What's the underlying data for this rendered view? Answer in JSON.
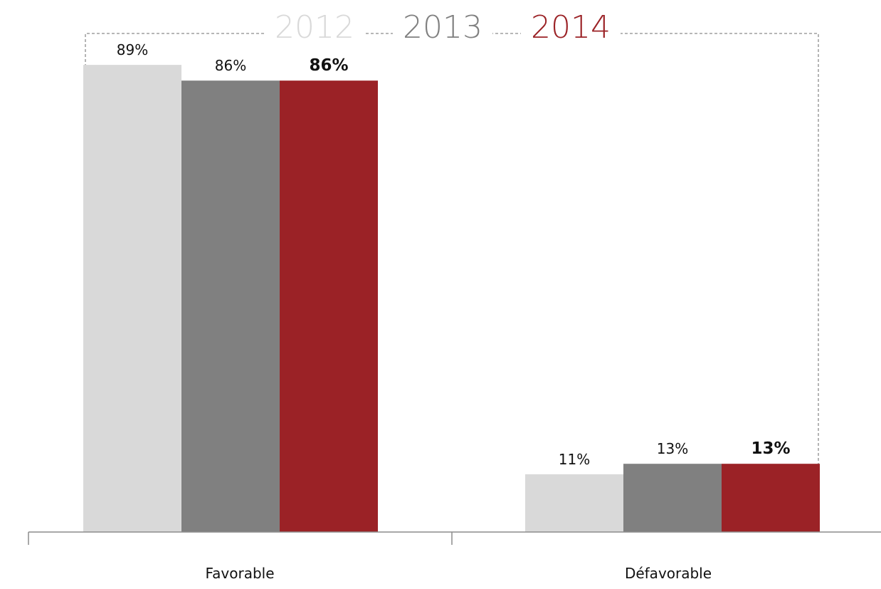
{
  "chart_data": {
    "type": "bar",
    "title": "",
    "xlabel": "",
    "ylabel": "",
    "categories": [
      "Favorable",
      "Défavorable"
    ],
    "series": [
      {
        "name": "2012",
        "values": [
          89,
          11
        ],
        "labels": [
          "89%",
          "11%"
        ],
        "color": "#d9d9d9",
        "bold": false
      },
      {
        "name": "2013",
        "values": [
          86,
          13
        ],
        "labels": [
          "86%",
          "13%"
        ],
        "color": "#808080",
        "bold": false
      },
      {
        "name": "2014",
        "values": [
          86,
          13
        ],
        "labels": [
          "86%",
          "13%"
        ],
        "color": "#9b2226",
        "bold": true
      }
    ],
    "legend": {
      "placement": "top-center",
      "items": [
        {
          "label": "2012",
          "color": "#d9d9d9"
        },
        {
          "label": "2013",
          "color": "#808080"
        },
        {
          "label": "2014",
          "color": "#9b2226"
        }
      ]
    },
    "ylim": [
      0,
      100
    ],
    "grid": false,
    "value_unit": "%"
  }
}
